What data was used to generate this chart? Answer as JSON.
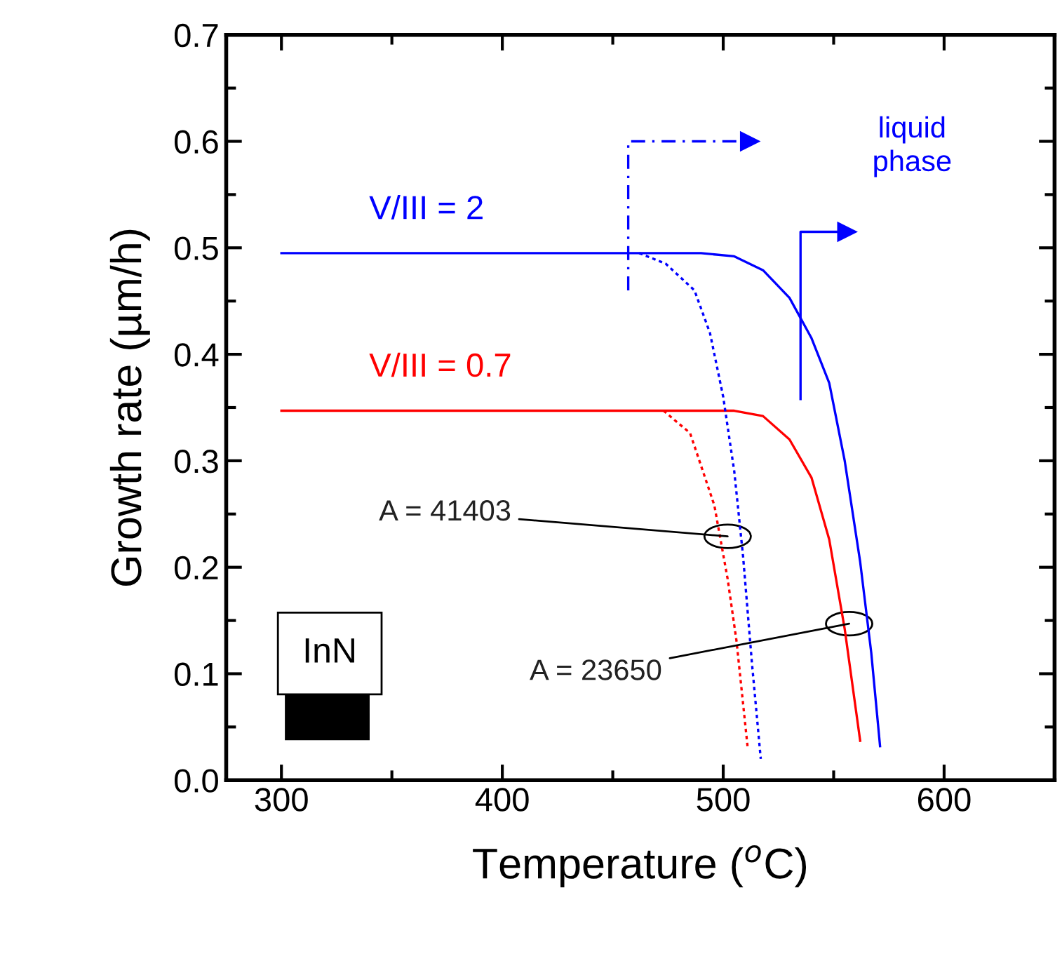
{
  "chart_data": {
    "type": "line",
    "xlabel": "Temperature ($^{o}$C)",
    "ylabel": "Growth rate (µm/h)",
    "xlim": [
      275,
      650
    ],
    "xticks": [
      300,
      400,
      500,
      600
    ],
    "ylim": [
      0,
      0.7
    ],
    "yticks": [
      {
        "value": 0,
        "label": "0.0"
      },
      {
        "value": 0.1,
        "label": "0.1"
      },
      {
        "value": 0.2,
        "label": "0.2"
      },
      {
        "value": 0.3,
        "label": "0.3"
      },
      {
        "value": 0.4,
        "label": "0.4"
      },
      {
        "value": 0.5,
        "label": "0.5"
      },
      {
        "value": 0.6,
        "label": "0.6"
      },
      {
        "value": 0.7,
        "label": "0.7"
      }
    ],
    "grid": false,
    "legend": false,
    "series": [
      {
        "name": "V/III = 2",
        "color": "#0000ff",
        "line_style": "solid",
        "x": [
          300,
          490,
          505,
          518,
          530,
          540,
          548,
          555,
          562,
          567,
          571
        ],
        "values": [
          0.495,
          0.495,
          0.492,
          0.479,
          0.453,
          0.415,
          0.373,
          0.3,
          0.205,
          0.12,
          0.032
        ]
      },
      {
        "name": "V/III = 0.7",
        "color": "#ff0000",
        "line_style": "solid",
        "x": [
          300,
          505,
          518,
          530,
          540,
          548,
          555,
          562
        ],
        "values": [
          0.347,
          0.347,
          0.342,
          0.32,
          0.284,
          0.226,
          0.142,
          0.037
        ]
      },
      {
        "color": "#0000ff",
        "line_style": "dotted",
        "x": [
          462,
          474,
          487,
          494,
          500,
          505,
          509,
          513,
          517
        ],
        "values": [
          0.495,
          0.485,
          0.46,
          0.42,
          0.36,
          0.29,
          0.21,
          0.11,
          0.02
        ]
      },
      {
        "color": "#ff0000",
        "line_style": "dotted",
        "x": [
          473,
          485,
          496,
          502,
          506,
          511
        ],
        "values": [
          0.347,
          0.326,
          0.258,
          0.189,
          0.131,
          0.032
        ]
      }
    ],
    "annotations": [
      {
        "text": "A = 41403",
        "x": 502,
        "y": 0.229
      },
      {
        "text": "A = 23650",
        "x": 557,
        "y": 0.147
      },
      "liquid\nphase",
      "InN"
    ]
  }
}
